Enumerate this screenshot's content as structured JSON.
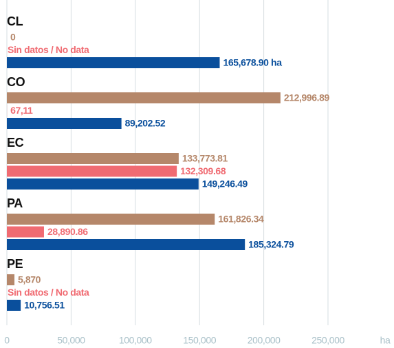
{
  "chart_data": {
    "type": "bar",
    "orientation": "horizontal",
    "categories": [
      "CL",
      "CO",
      "EC",
      "PA",
      "PE"
    ],
    "series": [
      {
        "color": "#b5876a",
        "values": [
          0,
          212996.89,
          133773.81,
          161826.34,
          5870
        ],
        "value_labels": [
          "0",
          "212,996.89",
          "133,773.81",
          "161,826.34",
          "5,870"
        ]
      },
      {
        "color": "#f06b72",
        "values": [
          null,
          67.11,
          132309.68,
          28890.86,
          null
        ],
        "value_labels": [
          "Sin datos / No data",
          "67,11",
          "132,309.68",
          "28,890.86",
          "Sin datos / No data"
        ]
      },
      {
        "color": "#0a4f9c",
        "values": [
          165678.9,
          89202.52,
          149246.49,
          185324.79,
          10756.51
        ],
        "value_labels": [
          "165,678.90 ha",
          "89,202.52",
          "149,246.49",
          "185,324.79",
          "10,756.51"
        ]
      }
    ],
    "xlim": [
      0,
      250000
    ],
    "xticks": [
      0,
      {
        "value": 50000,
        "label": "50,000"
      },
      {
        "value": 100000,
        "label": "100,000"
      },
      {
        "value": 150000,
        "label": "150,000"
      },
      {
        "value": 200000,
        "label": "200,000"
      },
      {
        "value": 250000,
        "label": "250,000"
      }
    ],
    "x_label": "ha",
    "grid": true
  }
}
